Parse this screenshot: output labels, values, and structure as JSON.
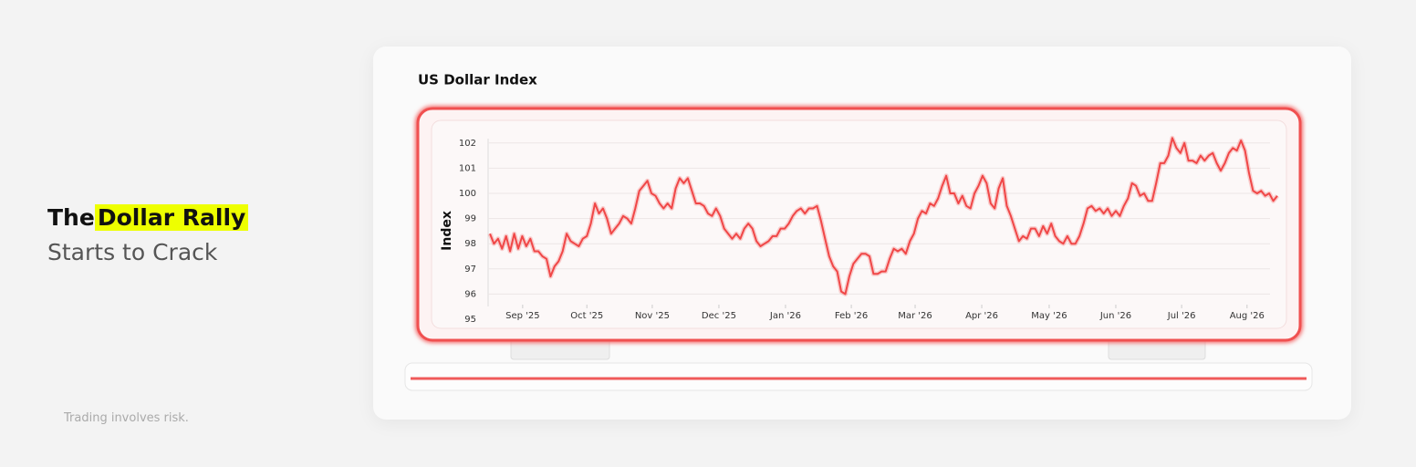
{
  "headline": {
    "lead": "The",
    "highlight": "Dollar Rally",
    "line2": "Starts to Crack"
  },
  "disclaimer": "Trading involves risk.",
  "chart_data": {
    "type": "line",
    "title": "US Dollar Index",
    "y_label": "Index",
    "color": "#f04747",
    "grid": true,
    "values": [
      98.4,
      98.0,
      98.2,
      97.8,
      98.3,
      97.7,
      98.4,
      97.8,
      98.3,
      97.9,
      98.2,
      97.7,
      97.7,
      97.5,
      97.4,
      96.7,
      97.1,
      97.3,
      97.7,
      98.4,
      98.1,
      98.0,
      97.9,
      98.2,
      98.3,
      98.8,
      99.6,
      99.2,
      99.4,
      99.0,
      98.4,
      98.6,
      98.8,
      99.1,
      99.0,
      98.8,
      99.4,
      100.1,
      100.3,
      100.5,
      100.0,
      99.9,
      99.6,
      99.4,
      99.6,
      99.4,
      100.2,
      100.6,
      100.4,
      100.6,
      100.1,
      99.6,
      99.6,
      99.5,
      99.2,
      99.1,
      99.4,
      99.1,
      98.6,
      98.4,
      98.2,
      98.4,
      98.2,
      98.6,
      98.8,
      98.6,
      98.1,
      97.9,
      98.0,
      98.1,
      98.3,
      98.3,
      98.6,
      98.6,
      98.8,
      99.1,
      99.3,
      99.4,
      99.2,
      99.4,
      99.4,
      99.5,
      98.9,
      98.2,
      97.5,
      97.1,
      96.9,
      96.1,
      96.0,
      96.7,
      97.2,
      97.4,
      97.6,
      97.6,
      97.5,
      96.8,
      96.8,
      96.9,
      96.9,
      97.4,
      97.8,
      97.7,
      97.8,
      97.6,
      98.1,
      98.4,
      99.0,
      99.3,
      99.2,
      99.6,
      99.5,
      99.8,
      100.3,
      100.7,
      100.0,
      100.0,
      99.6,
      99.9,
      99.5,
      99.4,
      100.0,
      100.3,
      100.7,
      100.4,
      99.6,
      99.4,
      100.2,
      100.6,
      99.5,
      99.1,
      98.6,
      98.1,
      98.3,
      98.2,
      98.6,
      98.6,
      98.3,
      98.7,
      98.4,
      98.8,
      98.3,
      98.1,
      98.0,
      98.3,
      98.0,
      98.0,
      98.3,
      98.8,
      99.4,
      99.5,
      99.3,
      99.4,
      99.2,
      99.4,
      99.1,
      99.3,
      99.1,
      99.5,
      99.8,
      100.4,
      100.3,
      99.9,
      100.0,
      99.7,
      99.7,
      100.4,
      101.2,
      101.2,
      101.5,
      102.2,
      101.8,
      101.6,
      102.0,
      101.3,
      101.3,
      101.2,
      101.5,
      101.3,
      101.5,
      101.6,
      101.2,
      100.9,
      101.2,
      101.6,
      101.8,
      101.7,
      102.1,
      101.7,
      100.8,
      100.1,
      100.0,
      100.1,
      99.9,
      100.0,
      99.7,
      99.9
    ],
    "xlim": [
      0,
      195
    ],
    "xticks": [
      {
        "value": 8.1,
        "label": "Sep '25"
      },
      {
        "value": 24.0,
        "label": "Oct '25"
      },
      {
        "value": 40.2,
        "label": "Nov '25"
      },
      {
        "value": 56.7,
        "label": "Dec '25"
      },
      {
        "value": 73.2,
        "label": "Jan '26"
      },
      {
        "value": 89.5,
        "label": "Feb '26"
      },
      {
        "value": 105.3,
        "label": "Mar '26"
      },
      {
        "value": 121.8,
        "label": "Apr '26"
      },
      {
        "value": 138.5,
        "label": "May '26"
      },
      {
        "value": 155.0,
        "label": "Jun '26"
      },
      {
        "value": 171.3,
        "label": "Jul '26"
      },
      {
        "value": 187.5,
        "label": "Aug '26"
      }
    ],
    "ylim": [
      95,
      102.3
    ],
    "yticks": [
      95,
      96,
      97,
      98,
      99,
      100,
      101,
      102
    ]
  }
}
